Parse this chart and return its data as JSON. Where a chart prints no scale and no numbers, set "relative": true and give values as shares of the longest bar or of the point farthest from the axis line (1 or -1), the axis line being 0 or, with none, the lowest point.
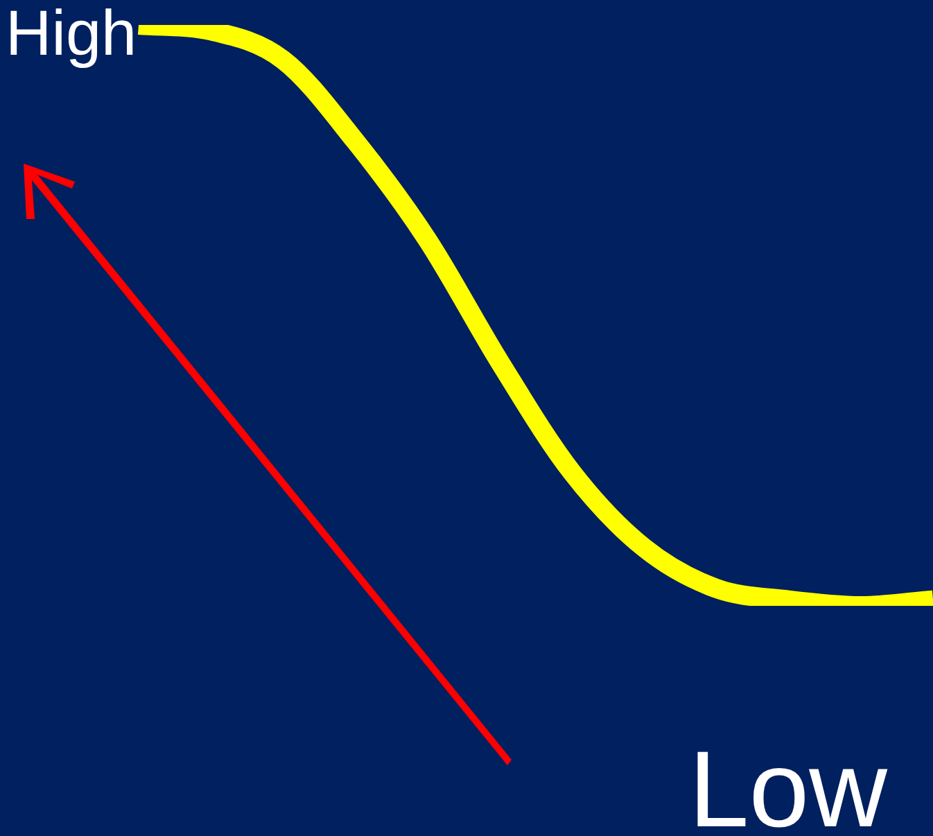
{
  "chart_data": {
    "type": "line",
    "relative": true,
    "marker": "none",
    "color": "#ffff00",
    "categories": [
      null,
      null,
      null,
      null,
      null,
      null,
      null,
      null,
      null,
      null,
      null,
      null
    ],
    "values": [
      1.0,
      0.99,
      0.94,
      0.8,
      0.63,
      0.42,
      0.23,
      0.1,
      0.03,
      0.01,
      0,
      0.01
    ],
    "annotations": [
      "High",
      "Low"
    ]
  }
}
